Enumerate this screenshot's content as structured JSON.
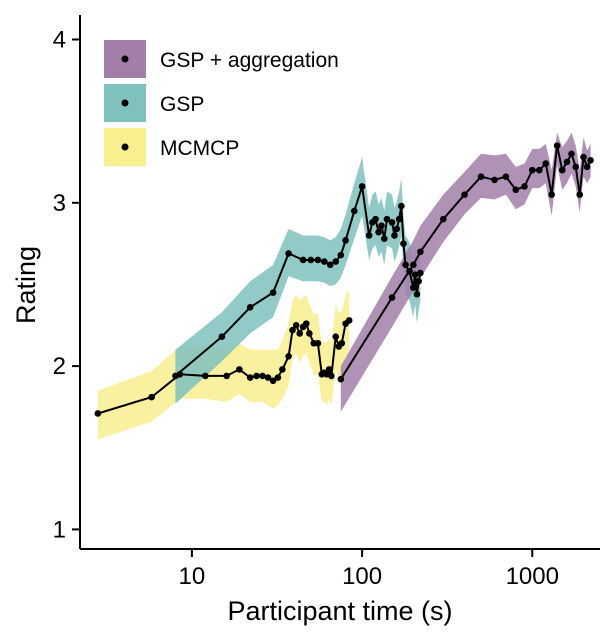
{
  "chart_data": {
    "type": "line",
    "title": "",
    "xlabel": "Participant time (s)",
    "ylabel": "Rating",
    "x_scale": "log",
    "xlim": [
      2.2,
      2500
    ],
    "ylim": [
      0.88,
      4.15
    ],
    "x_ticks": [
      10,
      100,
      1000
    ],
    "x_tick_labels": [
      "10",
      "100",
      "1000"
    ],
    "y_ticks": [
      1,
      2,
      3,
      4
    ],
    "y_tick_labels": [
      "1",
      "2",
      "3",
      "4"
    ],
    "grid": false,
    "legend_position": "top-left",
    "band": "shaded interval around each series",
    "series": [
      {
        "name": "GSP + aggregation",
        "band_color": "#a27fa9",
        "x": [
          75,
          150,
          200,
          220,
          300,
          400,
          500,
          600,
          700,
          800,
          900,
          1000,
          1100,
          1200,
          1300,
          1400,
          1500,
          1600,
          1700,
          1800,
          1900,
          2000,
          2100,
          2200
        ],
        "y": [
          1.92,
          2.42,
          2.62,
          2.7,
          2.9,
          3.05,
          3.16,
          3.14,
          3.16,
          3.08,
          3.1,
          3.2,
          3.2,
          3.24,
          3.05,
          3.35,
          3.2,
          3.25,
          3.3,
          3.22,
          3.05,
          3.28,
          3.22,
          3.26
        ],
        "lower": [
          1.72,
          2.24,
          2.46,
          2.54,
          2.76,
          2.93,
          3.03,
          3.02,
          3.05,
          2.96,
          2.99,
          3.09,
          3.09,
          3.12,
          2.92,
          3.23,
          3.08,
          3.12,
          3.18,
          3.1,
          2.94,
          3.16,
          3.12,
          3.16
        ],
        "upper": [
          2.0,
          2.55,
          2.77,
          2.86,
          3.05,
          3.19,
          3.3,
          3.29,
          3.3,
          3.22,
          3.24,
          3.33,
          3.33,
          3.36,
          3.2,
          3.43,
          3.34,
          3.38,
          3.43,
          3.35,
          3.2,
          3.4,
          3.32,
          3.36
        ]
      },
      {
        "name": "GSP",
        "band_color": "#7fc1bd",
        "x": [
          8,
          15,
          22,
          30,
          37,
          45,
          50,
          55,
          60,
          65,
          70,
          75,
          80,
          90,
          100,
          110,
          115,
          120,
          125,
          130,
          135,
          140,
          150,
          155,
          160,
          165,
          170,
          175,
          180,
          190,
          200,
          205,
          210,
          215,
          220
        ],
        "y": [
          1.94,
          2.18,
          2.36,
          2.45,
          2.69,
          2.65,
          2.65,
          2.65,
          2.64,
          2.62,
          2.64,
          2.68,
          2.77,
          2.95,
          3.1,
          2.8,
          2.88,
          2.9,
          2.82,
          2.86,
          2.78,
          2.9,
          2.88,
          2.8,
          2.84,
          2.9,
          2.98,
          2.75,
          2.62,
          2.58,
          2.48,
          2.56,
          2.44,
          2.52,
          2.57
        ],
        "lower": [
          1.77,
          2.03,
          2.2,
          2.3,
          2.55,
          2.52,
          2.52,
          2.52,
          2.51,
          2.49,
          2.5,
          2.54,
          2.62,
          2.78,
          2.92,
          2.65,
          2.72,
          2.74,
          2.67,
          2.7,
          2.62,
          2.74,
          2.72,
          2.64,
          2.68,
          2.73,
          2.8,
          2.58,
          2.45,
          2.4,
          2.3,
          2.38,
          2.26,
          2.34,
          2.4
        ],
        "upper": [
          2.1,
          2.33,
          2.52,
          2.62,
          2.84,
          2.8,
          2.8,
          2.8,
          2.79,
          2.77,
          2.79,
          2.84,
          2.93,
          3.12,
          3.28,
          2.97,
          3.05,
          3.07,
          2.99,
          3.03,
          2.95,
          3.07,
          3.05,
          2.97,
          3.01,
          3.07,
          3.15,
          2.92,
          2.8,
          2.76,
          2.66,
          2.73,
          2.62,
          2.7,
          2.75
        ]
      },
      {
        "name": "MCMCP",
        "band_color": "#f8ef8f",
        "x": [
          2.8,
          5.8,
          8.5,
          12,
          16,
          19,
          22,
          24,
          26,
          28,
          30,
          32,
          34,
          37,
          39,
          41,
          43,
          45,
          47,
          49,
          52,
          55,
          58,
          60,
          62,
          64,
          66,
          70,
          73,
          76,
          80,
          84
        ],
        "y": [
          1.71,
          1.81,
          1.95,
          1.94,
          1.94,
          1.98,
          1.93,
          1.94,
          1.94,
          1.93,
          1.91,
          1.93,
          1.98,
          2.06,
          2.22,
          2.25,
          2.2,
          2.24,
          2.26,
          2.2,
          2.14,
          2.14,
          1.95,
          1.96,
          1.95,
          1.98,
          1.94,
          2.18,
          2.12,
          2.14,
          2.26,
          2.28
        ],
        "lower": [
          1.55,
          1.66,
          1.8,
          1.8,
          1.78,
          1.83,
          1.78,
          1.78,
          1.78,
          1.76,
          1.74,
          1.76,
          1.8,
          1.88,
          2.04,
          2.08,
          2.02,
          2.06,
          2.08,
          2.02,
          1.95,
          1.95,
          1.78,
          1.78,
          1.76,
          1.8,
          1.76,
          1.98,
          1.92,
          1.94,
          2.06,
          2.08
        ],
        "upper": [
          1.85,
          1.97,
          2.12,
          2.12,
          2.12,
          2.14,
          2.1,
          2.1,
          2.1,
          2.1,
          2.1,
          2.1,
          2.16,
          2.26,
          2.4,
          2.44,
          2.4,
          2.42,
          2.44,
          2.38,
          2.32,
          2.32,
          2.14,
          2.15,
          2.15,
          2.17,
          2.14,
          2.38,
          2.32,
          2.34,
          2.44,
          2.46
        ]
      }
    ]
  }
}
